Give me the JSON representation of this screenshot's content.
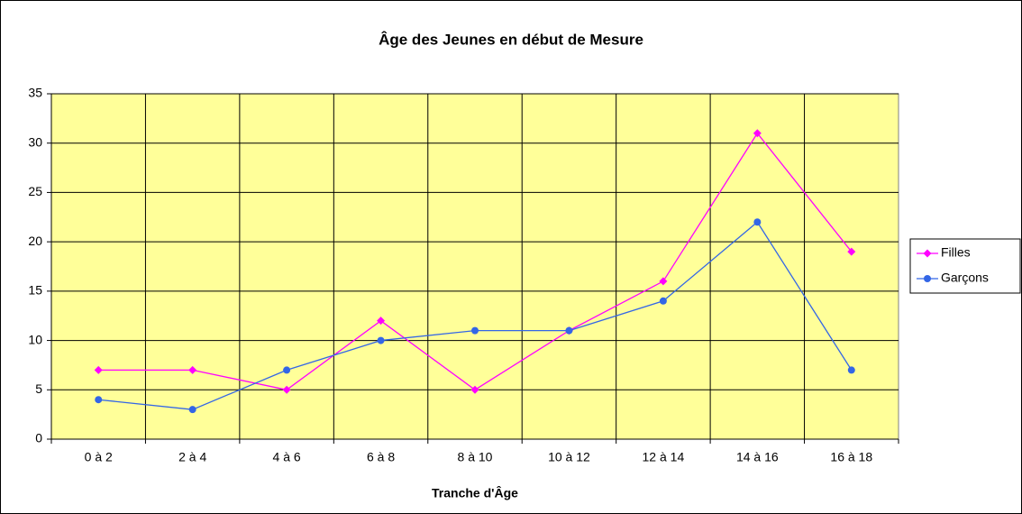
{
  "chart_data": {
    "type": "line",
    "title": "Âge des Jeunes en début de Mesure",
    "xlabel": "Tranche d'Âge",
    "categories": [
      "0 à 2",
      "2 à 4",
      "4 à 6",
      "6 à 8",
      "8 à 10",
      "10 à 12",
      "12 à 14",
      "14 à 16",
      "16 à 18"
    ],
    "series": [
      {
        "name": "Filles",
        "color": "#ff00ff",
        "marker": "diamond",
        "values": [
          7,
          7,
          5,
          12,
          5,
          11,
          16,
          31,
          19
        ]
      },
      {
        "name": "Garçons",
        "color": "#3366e6",
        "marker": "circle",
        "values": [
          4,
          3,
          7,
          10,
          11,
          11,
          14,
          22,
          7
        ]
      }
    ],
    "ylim": [
      0,
      35
    ],
    "yticks": [
      0,
      5,
      10,
      15,
      20,
      25,
      30,
      35
    ],
    "grid": true,
    "legend": "right",
    "plot_background": "#ffff99"
  }
}
